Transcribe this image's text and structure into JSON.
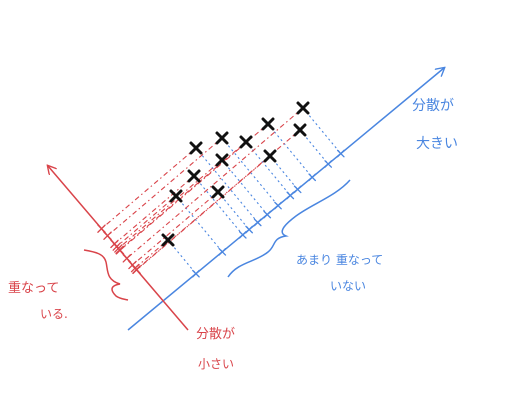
{
  "colors": {
    "blue": "#4a86e0",
    "red": "#d9444a",
    "black": "#111111"
  },
  "labels": {
    "large_variance_line1": "分散が",
    "large_variance_line2": "大きい",
    "not_overlap_line1": "あまり 重なって",
    "not_overlap_line2": "いない",
    "overlap_line1": "重なって",
    "overlap_line2": "いる.",
    "small_variance_line1": "分散が",
    "small_variance_line2": "小さい"
  }
}
